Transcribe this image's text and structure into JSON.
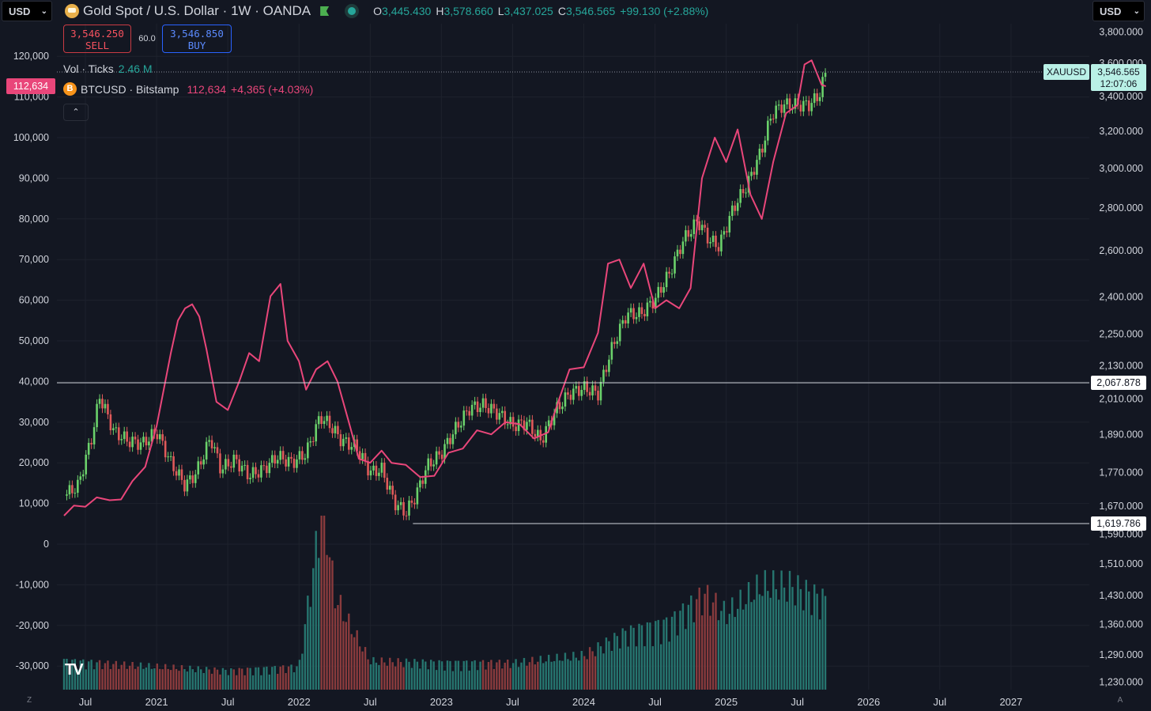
{
  "toolbar": {
    "currency_left": "USD",
    "currency_right": "USD"
  },
  "header": {
    "title": "Gold Spot / U.S. Dollar · 1W · OANDA",
    "ohlc": {
      "o_label": "O",
      "o": "3,445.430",
      "h_label": "H",
      "h": "3,578.660",
      "l_label": "L",
      "l": "3,437.025",
      "c_label": "C",
      "c": "3,546.565",
      "change": "+99.130 (+2.88%)"
    }
  },
  "trade": {
    "sell_price": "3,546.250",
    "sell_label": "SELL",
    "spread": "60.0",
    "buy_price": "3,546.850",
    "buy_label": "BUY"
  },
  "volume": {
    "label": "Vol · Ticks",
    "value": "2.46 M"
  },
  "btc": {
    "symbol": "BTCUSD · Bitstamp",
    "value": "112,634",
    "change": "+4,365 (+4.03%)",
    "tag": "112,634",
    "icon": "B"
  },
  "icons": {
    "collapse": "chevron-up-icon",
    "logo": "tradingview-logo-icon",
    "corner_left": "Z",
    "corner_right": "A"
  },
  "colors": {
    "background": "#131722",
    "up": "#26a69a",
    "down": "#ef5350",
    "btc_line": "#e9467a",
    "up_candle": "#6bd16b",
    "down_candle": "#e05a5a"
  },
  "chart_data": {
    "type": "line",
    "left_axis": {
      "ticks": [
        "120,000",
        "110,000",
        "100,000",
        "90,000",
        "80,000",
        "70,000",
        "60,000",
        "50,000",
        "40,000",
        "30,000",
        "20,000",
        "10,000",
        "0",
        "-10,000",
        "-20,000",
        "-30,000"
      ]
    },
    "right_axis": {
      "scale": "log",
      "ticks": [
        "3,800.000",
        "3,600.000",
        "3,400.000",
        "3,200.000",
        "3,000.000",
        "2,800.000",
        "2,600.000",
        "2,400.000",
        "2,250.000",
        "2,130.000",
        "2,010.000",
        "1,890.000",
        "1,770.000",
        "1,670.000",
        "1,590.000",
        "1,510.000",
        "1,430.000",
        "1,360.000",
        "1,290.000",
        "1,230.000"
      ]
    },
    "x_ticks": [
      "Jul",
      "2021",
      "Jul",
      "2022",
      "Jul",
      "2023",
      "Jul",
      "2024",
      "Jul",
      "2025",
      "Jul",
      "2026",
      "Jul",
      "2027"
    ],
    "price_labels": {
      "xau_symbol": "XAUUSD",
      "xau_price": "3,546.565",
      "xau_countdown": "12:07:06",
      "hline_high": "2,067.878",
      "hline_low": "1,619.786"
    },
    "series": [
      {
        "name": "BTCUSD · Bitstamp",
        "axis": "left",
        "points": [
          [
            2020.35,
            7000
          ],
          [
            2020.42,
            9500
          ],
          [
            2020.5,
            9200
          ],
          [
            2020.58,
            11500
          ],
          [
            2020.67,
            10800
          ],
          [
            2020.75,
            11000
          ],
          [
            2020.83,
            15500
          ],
          [
            2020.92,
            19000
          ],
          [
            2021.0,
            29000
          ],
          [
            2021.05,
            38000
          ],
          [
            2021.1,
            47000
          ],
          [
            2021.15,
            55000
          ],
          [
            2021.2,
            58000
          ],
          [
            2021.25,
            59000
          ],
          [
            2021.3,
            56000
          ],
          [
            2021.35,
            48000
          ],
          [
            2021.42,
            35000
          ],
          [
            2021.5,
            33000
          ],
          [
            2021.58,
            40000
          ],
          [
            2021.65,
            47000
          ],
          [
            2021.72,
            45000
          ],
          [
            2021.8,
            61000
          ],
          [
            2021.87,
            64000
          ],
          [
            2021.92,
            50000
          ],
          [
            2022.0,
            45000
          ],
          [
            2022.05,
            38000
          ],
          [
            2022.12,
            43000
          ],
          [
            2022.2,
            45000
          ],
          [
            2022.27,
            40000
          ],
          [
            2022.35,
            30000
          ],
          [
            2022.42,
            21000
          ],
          [
            2022.5,
            20000
          ],
          [
            2022.58,
            23000
          ],
          [
            2022.65,
            20000
          ],
          [
            2022.75,
            19500
          ],
          [
            2022.85,
            16500
          ],
          [
            2022.95,
            16800
          ],
          [
            2023.05,
            22500
          ],
          [
            2023.15,
            23500
          ],
          [
            2023.25,
            28000
          ],
          [
            2023.35,
            27000
          ],
          [
            2023.45,
            30000
          ],
          [
            2023.55,
            29500
          ],
          [
            2023.65,
            26000
          ],
          [
            2023.75,
            27500
          ],
          [
            2023.82,
            35000
          ],
          [
            2023.9,
            43000
          ],
          [
            2024.0,
            43500
          ],
          [
            2024.1,
            52000
          ],
          [
            2024.17,
            69000
          ],
          [
            2024.25,
            70000
          ],
          [
            2024.33,
            63000
          ],
          [
            2024.42,
            69000
          ],
          [
            2024.5,
            58000
          ],
          [
            2024.58,
            60000
          ],
          [
            2024.67,
            58000
          ],
          [
            2024.75,
            63000
          ],
          [
            2024.83,
            90000
          ],
          [
            2024.92,
            100000
          ],
          [
            2025.0,
            94000
          ],
          [
            2025.08,
            102000
          ],
          [
            2025.17,
            86000
          ],
          [
            2025.25,
            80000
          ],
          [
            2025.33,
            94000
          ],
          [
            2025.42,
            106000
          ],
          [
            2025.5,
            108000
          ],
          [
            2025.55,
            118000
          ],
          [
            2025.6,
            119000
          ],
          [
            2025.67,
            113000
          ],
          [
            2025.7,
            112634
          ]
        ]
      },
      {
        "name": "XAUUSD",
        "axis": "right",
        "type": "candles",
        "points": [
          [
            2020.35,
            1700
          ],
          [
            2020.45,
            1730
          ],
          [
            2020.55,
            1890
          ],
          [
            2020.6,
            2020
          ],
          [
            2020.7,
            1900
          ],
          [
            2020.8,
            1870
          ],
          [
            2020.9,
            1860
          ],
          [
            2021.0,
            1900
          ],
          [
            2021.1,
            1800
          ],
          [
            2021.2,
            1730
          ],
          [
            2021.28,
            1770
          ],
          [
            2021.38,
            1880
          ],
          [
            2021.45,
            1780
          ],
          [
            2021.55,
            1810
          ],
          [
            2021.65,
            1760
          ],
          [
            2021.75,
            1780
          ],
          [
            2021.85,
            1820
          ],
          [
            2021.95,
            1800
          ],
          [
            2022.05,
            1830
          ],
          [
            2022.15,
            1950
          ],
          [
            2022.22,
            1920
          ],
          [
            2022.3,
            1870
          ],
          [
            2022.4,
            1850
          ],
          [
            2022.5,
            1770
          ],
          [
            2022.58,
            1780
          ],
          [
            2022.67,
            1680
          ],
          [
            2022.75,
            1650
          ],
          [
            2022.82,
            1700
          ],
          [
            2022.9,
            1790
          ],
          [
            2023.0,
            1830
          ],
          [
            2023.1,
            1910
          ],
          [
            2023.2,
            1980
          ],
          [
            2023.3,
            1990
          ],
          [
            2023.4,
            1960
          ],
          [
            2023.5,
            1920
          ],
          [
            2023.6,
            1930
          ],
          [
            2023.7,
            1870
          ],
          [
            2023.8,
            1970
          ],
          [
            2023.9,
            2030
          ],
          [
            2024.0,
            2050
          ],
          [
            2024.1,
            2030
          ],
          [
            2024.2,
            2200
          ],
          [
            2024.3,
            2330
          ],
          [
            2024.4,
            2330
          ],
          [
            2024.5,
            2390
          ],
          [
            2024.6,
            2500
          ],
          [
            2024.7,
            2650
          ],
          [
            2024.8,
            2740
          ],
          [
            2024.88,
            2650
          ],
          [
            2024.95,
            2620
          ],
          [
            2025.05,
            2800
          ],
          [
            2025.15,
            2920
          ],
          [
            2025.25,
            3100
          ],
          [
            2025.32,
            3300
          ],
          [
            2025.4,
            3350
          ],
          [
            2025.5,
            3350
          ],
          [
            2025.58,
            3350
          ],
          [
            2025.65,
            3400
          ],
          [
            2025.7,
            3546.565
          ]
        ]
      }
    ],
    "volume_series": {
      "name": "Vol · Ticks",
      "values": [
        [
          2020.35,
          0.15
        ],
        [
          2021.0,
          0.12
        ],
        [
          2021.5,
          0.1
        ],
        [
          2022.0,
          0.12
        ],
        [
          2022.17,
          1.0
        ],
        [
          2022.25,
          0.5
        ],
        [
          2022.35,
          0.35
        ],
        [
          2022.5,
          0.15
        ],
        [
          2023.0,
          0.14
        ],
        [
          2023.5,
          0.14
        ],
        [
          2024.0,
          0.18
        ],
        [
          2024.3,
          0.3
        ],
        [
          2024.6,
          0.35
        ],
        [
          2024.85,
          0.5
        ],
        [
          2025.0,
          0.4
        ],
        [
          2025.25,
          0.55
        ],
        [
          2025.45,
          0.55
        ],
        [
          2025.6,
          0.5
        ],
        [
          2025.7,
          0.47
        ]
      ]
    }
  }
}
